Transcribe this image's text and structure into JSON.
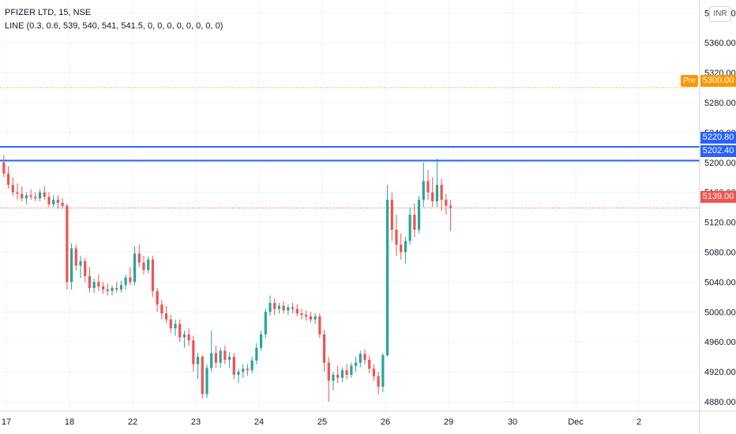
{
  "legend": {
    "symbol": "PFIZER LTD, 15, NSE",
    "indicator": "LINE (0.3, 0.6, 539, 540, 541, 541.5, 0, 0, 0, 0, 0, 0, 0, 0)"
  },
  "currency_badge": "INR",
  "colors": {
    "up": "#26a69a",
    "down": "#ef5350",
    "blue_line": "#2962ff",
    "pre": "#ff9800",
    "last": "#ef5350",
    "grid": "#f0f3fa",
    "axis_text": "#131722"
  },
  "price_tags": {
    "pre_label": "Pre",
    "pre_value": "5300.00",
    "level_top": "5220.80",
    "level_bottom": "5202.40",
    "last_value": "5139.00"
  },
  "chart_data": {
    "type": "candlestick",
    "title": "PFIZER LTD, 15, NSE",
    "ylim": [
      4860,
      5410
    ],
    "y_ticks": [
      4880,
      4920,
      4960,
      5000,
      5040,
      5080,
      5120,
      5160,
      5200,
      5240,
      5280,
      5320,
      5360,
      5400
    ],
    "y_tick_labels": [
      "4880.00",
      "4920.00",
      "4960.00",
      "5000.00",
      "5040.00",
      "5080.00",
      "5120.00",
      "5160.00",
      "5200.00",
      "5240.00",
      "5280.00",
      "5320.00",
      "5360.00",
      "5400.00"
    ],
    "x_labels": [
      "17",
      "18",
      "22",
      "23",
      "24",
      "25",
      "26",
      "29",
      "30",
      "Dec",
      "2"
    ],
    "horizontal_levels": [
      {
        "value": 5220.8,
        "style": "solid",
        "color": "#2962ff"
      },
      {
        "value": 5202.4,
        "style": "solid",
        "color": "#2962ff"
      },
      {
        "value": 5300.0,
        "style": "dotted",
        "color": "#ff9800"
      },
      {
        "value": 5139.0,
        "style": "dotted",
        "color": "#ef5350"
      }
    ],
    "sessions": [
      {
        "label": "17",
        "candles": [
          [
            5200,
            5210,
            5180,
            5185
          ],
          [
            5185,
            5195,
            5165,
            5170
          ],
          [
            5170,
            5180,
            5155,
            5160
          ],
          [
            5160,
            5172,
            5150,
            5158
          ],
          [
            5158,
            5168,
            5148,
            5152
          ],
          [
            5152,
            5160,
            5144,
            5156
          ],
          [
            5156,
            5164,
            5150,
            5154
          ],
          [
            5154,
            5160,
            5148,
            5152
          ],
          [
            5152,
            5164,
            5148,
            5160
          ],
          [
            5160,
            5168,
            5150,
            5154
          ],
          [
            5154,
            5160,
            5140,
            5144
          ],
          [
            5144,
            5156,
            5140,
            5150
          ],
          [
            5150,
            5156,
            5138,
            5146
          ],
          [
            5146,
            5152,
            5138,
            5142
          ]
        ]
      },
      {
        "label": "18",
        "candles": [
          [
            5142,
            5145,
            5030,
            5040
          ],
          [
            5040,
            5092,
            5030,
            5085
          ],
          [
            5085,
            5090,
            5055,
            5062
          ],
          [
            5062,
            5075,
            5045,
            5068
          ],
          [
            5068,
            5072,
            5040,
            5048
          ],
          [
            5048,
            5060,
            5026,
            5032
          ],
          [
            5032,
            5045,
            5025,
            5040
          ],
          [
            5040,
            5050,
            5028,
            5034
          ],
          [
            5034,
            5040,
            5024,
            5030
          ],
          [
            5030,
            5038,
            5022,
            5028
          ],
          [
            5028,
            5036,
            5022,
            5032
          ],
          [
            5032,
            5040,
            5026,
            5030
          ],
          [
            5030,
            5042,
            5026,
            5036
          ],
          [
            5036,
            5050,
            5030,
            5046
          ]
        ]
      },
      {
        "label": "22",
        "candles": [
          [
            5046,
            5060,
            5036,
            5040
          ],
          [
            5040,
            5088,
            5036,
            5078
          ],
          [
            5078,
            5090,
            5060,
            5066
          ],
          [
            5066,
            5075,
            5050,
            5056
          ],
          [
            5056,
            5074,
            5052,
            5070
          ],
          [
            5070,
            5075,
            5020,
            5028
          ],
          [
            5028,
            5032,
            5000,
            5010
          ],
          [
            5010,
            5016,
            4990,
            4998
          ],
          [
            4998,
            5008,
            4985,
            4990
          ],
          [
            4990,
            4996,
            4972,
            4978
          ],
          [
            4978,
            4990,
            4968,
            4984
          ],
          [
            4984,
            4990,
            4960,
            4966
          ],
          [
            4966,
            4975,
            4952,
            4970
          ],
          [
            4970,
            4978,
            4955,
            4962
          ]
        ]
      },
      {
        "label": "23",
        "candles": [
          [
            4962,
            4968,
            4920,
            4930
          ],
          [
            4930,
            4945,
            4910,
            4940
          ],
          [
            4940,
            4942,
            4884,
            4890
          ],
          [
            4890,
            4930,
            4885,
            4925
          ],
          [
            4925,
            4975,
            4920,
            4945
          ],
          [
            4945,
            4955,
            4925,
            4932
          ],
          [
            4932,
            4952,
            4925,
            4948
          ],
          [
            4948,
            4955,
            4930,
            4936
          ],
          [
            4936,
            4946,
            4925,
            4940
          ],
          [
            4940,
            4945,
            4910,
            4916
          ],
          [
            4916,
            4924,
            4905,
            4920
          ],
          [
            4920,
            4930,
            4912,
            4924
          ],
          [
            4924,
            4930,
            4915,
            4922
          ],
          [
            4922,
            4940,
            4918,
            4935
          ]
        ]
      },
      {
        "label": "24",
        "candles": [
          [
            4935,
            4958,
            4930,
            4952
          ],
          [
            4952,
            4975,
            4948,
            4970
          ],
          [
            4970,
            5004,
            4965,
            5000
          ],
          [
            5000,
            5022,
            4995,
            5012
          ],
          [
            5012,
            5018,
            4996,
            5004
          ],
          [
            5004,
            5012,
            4998,
            5008
          ],
          [
            5008,
            5014,
            4998,
            5002
          ],
          [
            5002,
            5010,
            4996,
            5006
          ],
          [
            5006,
            5012,
            4998,
            5004
          ],
          [
            5004,
            5010,
            4994,
            4998
          ],
          [
            4998,
            5004,
            4990,
            4996
          ],
          [
            4996,
            5002,
            4988,
            4994
          ],
          [
            4994,
            5000,
            4986,
            4990
          ],
          [
            4990,
            4998,
            4984,
            4994
          ]
        ]
      },
      {
        "label": "25",
        "candles": [
          [
            4994,
            4998,
            4965,
            4970
          ],
          [
            4970,
            4976,
            4920,
            4932
          ],
          [
            4932,
            4940,
            4880,
            4908
          ],
          [
            4908,
            4920,
            4895,
            4916
          ],
          [
            4916,
            4928,
            4905,
            4912
          ],
          [
            4912,
            4926,
            4906,
            4922
          ],
          [
            4922,
            4930,
            4910,
            4916
          ],
          [
            4916,
            4932,
            4912,
            4928
          ],
          [
            4928,
            4940,
            4920,
            4932
          ],
          [
            4932,
            4948,
            4926,
            4944
          ],
          [
            4944,
            4950,
            4930,
            4936
          ],
          [
            4936,
            4942,
            4918,
            4924
          ],
          [
            4924,
            4930,
            4908,
            4914
          ],
          [
            4914,
            4920,
            4890,
            4900
          ]
        ]
      },
      {
        "label": "26",
        "candles": [
          [
            4900,
            4945,
            4893,
            4942
          ],
          [
            4942,
            5170,
            4940,
            5150
          ],
          [
            5150,
            5160,
            5095,
            5110
          ],
          [
            5110,
            5130,
            5075,
            5090
          ],
          [
            5090,
            5105,
            5070,
            5080
          ],
          [
            5080,
            5100,
            5065,
            5095
          ],
          [
            5095,
            5140,
            5090,
            5130
          ],
          [
            5130,
            5145,
            5100,
            5110
          ],
          [
            5110,
            5155,
            5105,
            5150
          ],
          [
            5150,
            5200,
            5140,
            5175
          ],
          [
            5175,
            5190,
            5150,
            5160
          ],
          [
            5160,
            5180,
            5140,
            5148
          ],
          [
            5148,
            5205,
            5140,
            5170
          ],
          [
            5170,
            5178,
            5135,
            5150
          ]
        ]
      },
      {
        "label": "29",
        "candles": [
          [
            5150,
            5158,
            5130,
            5142
          ],
          [
            5142,
            5150,
            5108,
            5139
          ]
        ]
      }
    ]
  }
}
